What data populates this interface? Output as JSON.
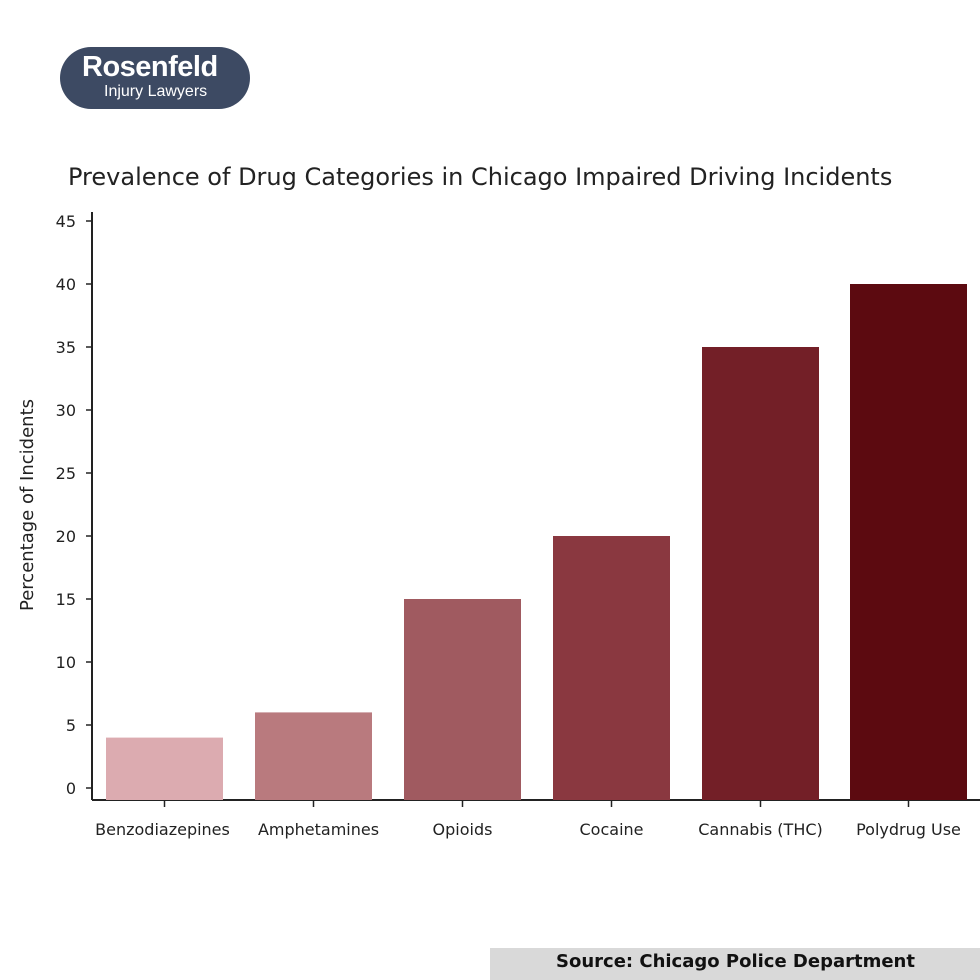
{
  "logo": {
    "line1": "Rosenfeld",
    "line2": "Injury Lawyers"
  },
  "source": "Source:  Chicago Police Department",
  "chart_data": {
    "type": "bar",
    "title": "Prevalence of Drug Categories in Chicago Impaired Driving Incidents",
    "xlabel": "",
    "ylabel": "Percentage of Incidents",
    "categories": [
      "Benzodiazepines",
      "Amphetamines",
      "Opioids",
      "Cocaine",
      "Cannabis (THC)",
      "Polydrug Use"
    ],
    "values": [
      4,
      6,
      15,
      20,
      35,
      40
    ],
    "colors": [
      "#dcabb0",
      "#b97a7e",
      "#a05a60",
      "#8a3840",
      "#731f27",
      "#5c0a10"
    ],
    "ylim": [
      0,
      45
    ],
    "yticks": [
      0,
      5,
      10,
      15,
      20,
      25,
      30,
      35,
      40,
      45
    ],
    "grid": false
  }
}
